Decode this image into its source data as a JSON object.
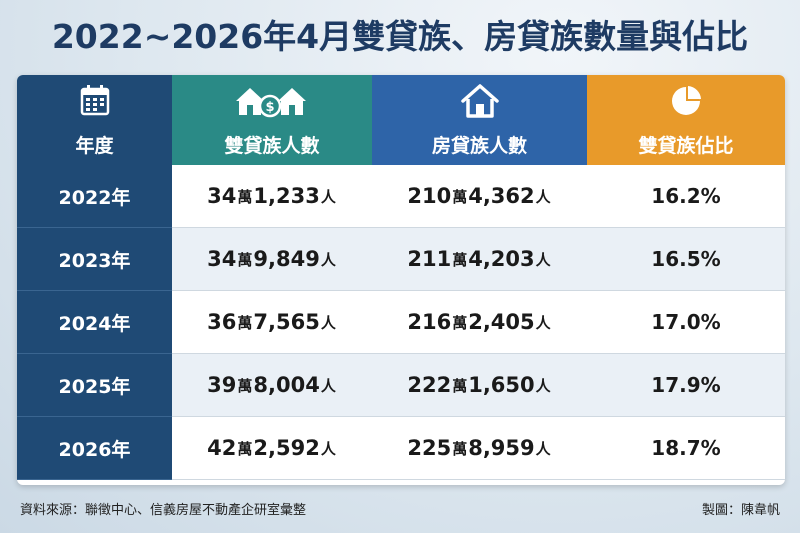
{
  "title": "2022~2026年4月雙貸族、房貸族數量與佔比",
  "headers": {
    "year": "年度",
    "dual": "雙貸族人數",
    "mortgage": "房貸族人數",
    "ratio": "雙貸族佔比"
  },
  "icons": [
    "calendar-icon",
    "houses-money-icon",
    "house-icon",
    "pie-chart-icon"
  ],
  "rows": [
    {
      "year": "2022年",
      "dual_a": "34",
      "dual_u1": "萬",
      "dual_b": "1,233",
      "dual_u2": "人",
      "mort_a": "210",
      "mort_u1": "萬",
      "mort_b": "4,362",
      "mort_u2": "人",
      "ratio": "16.2%"
    },
    {
      "year": "2023年",
      "dual_a": "34",
      "dual_u1": "萬",
      "dual_b": "9,849",
      "dual_u2": "人",
      "mort_a": "211",
      "mort_u1": "萬",
      "mort_b": "4,203",
      "mort_u2": "人",
      "ratio": "16.5%"
    },
    {
      "year": "2024年",
      "dual_a": "36",
      "dual_u1": "萬",
      "dual_b": "7,565",
      "dual_u2": "人",
      "mort_a": "216",
      "mort_u1": "萬",
      "mort_b": "2,405",
      "mort_u2": "人",
      "ratio": "17.0%"
    },
    {
      "year": "2025年",
      "dual_a": "39",
      "dual_u1": "萬",
      "dual_b": "8,004",
      "dual_u2": "人",
      "mort_a": "222",
      "mort_u1": "萬",
      "mort_b": "1,650",
      "mort_u2": "人",
      "ratio": "17.9%"
    },
    {
      "year": "2026年",
      "dual_a": "42",
      "dual_u1": "萬",
      "dual_b": "2,592",
      "dual_u2": "人",
      "mort_a": "225",
      "mort_u1": "萬",
      "mort_b": "8,959",
      "mort_u2": "人",
      "ratio": "18.7%"
    }
  ],
  "footer": {
    "source": "資料來源：聯徵中心、信義房屋不動產企研室彙整",
    "credit": "製圖：陳韋帆"
  },
  "colors": {
    "title": "#1e3b63",
    "year_col": "#1f4a75",
    "dual_col": "#2a8a86",
    "mortgage_col": "#2e64a8",
    "ratio_col": "#e89a2a"
  }
}
